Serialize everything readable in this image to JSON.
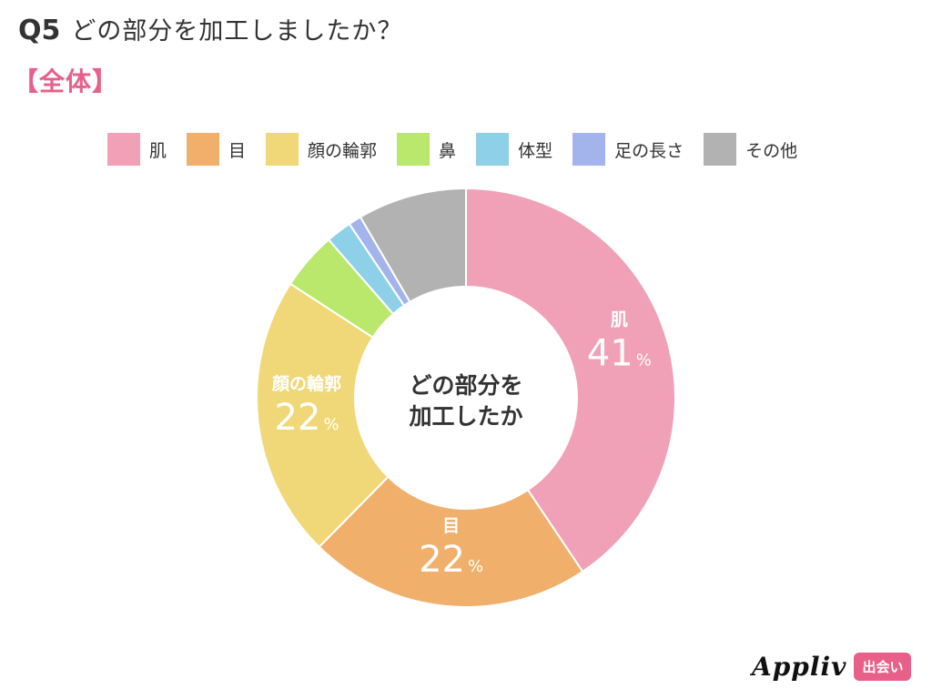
{
  "header": {
    "question_number": "Q5",
    "question_text": "どの部分を加工しましたか？",
    "segment_label": "【全体】"
  },
  "center_label": {
    "line1": "どの部分を",
    "line2": "加工したか"
  },
  "logo": {
    "text": "Appliv",
    "badge": "出会い"
  },
  "chart_data": {
    "type": "pie",
    "donut": true,
    "categories": [
      "肌",
      "目",
      "顔の輪郭",
      "鼻",
      "体型",
      "足の長さ",
      "その他"
    ],
    "values": [
      41,
      22,
      22,
      4.5,
      2,
      1,
      8.5
    ],
    "shown_labels": [
      "41",
      "22",
      "22",
      "",
      "",
      "",
      ""
    ],
    "percent_sign": "%",
    "colors": [
      "#f0a1b8",
      "#f0b06c",
      "#f0d878",
      "#b9e86c",
      "#8ed0e8",
      "#a3b3ec",
      "#b2b2b2"
    ],
    "legend_position": "top"
  }
}
